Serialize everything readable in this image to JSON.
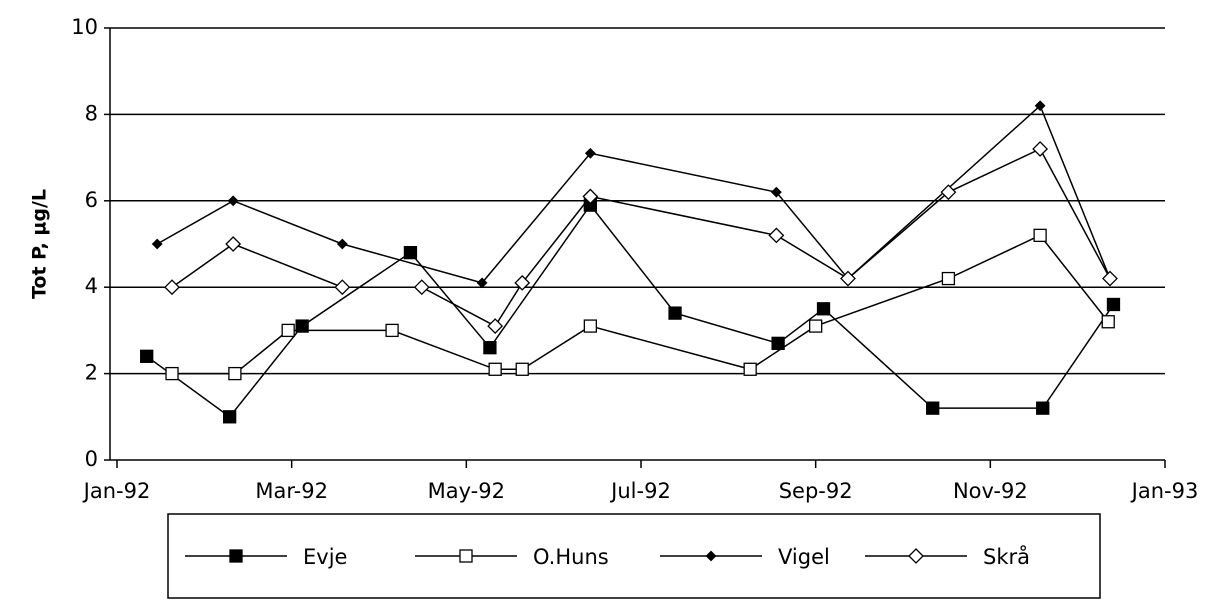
{
  "chart_data": {
    "type": "line",
    "ylabel": "Tot P, µg/L",
    "xlim": [
      0,
      12
    ],
    "xticks": [
      {
        "value": 0,
        "label": "Jan-92"
      },
      {
        "value": 2,
        "label": "Mar-92"
      },
      {
        "value": 4,
        "label": "May-92"
      },
      {
        "value": 6,
        "label": "Jul-92"
      },
      {
        "value": 8,
        "label": "Sep-92"
      },
      {
        "value": 10,
        "label": "Nov-92"
      },
      {
        "value": 12,
        "label": "Jan-93"
      }
    ],
    "ylim": [
      0,
      10
    ],
    "yticks": [
      0,
      2,
      4,
      6,
      8,
      10
    ],
    "grid": true,
    "legend": "bottom",
    "series": [
      {
        "name": "Evje",
        "color": "#000000",
        "marker": "square-filled",
        "x": [
          0.34,
          1.29,
          2.12,
          3.36,
          4.27,
          5.42,
          6.39,
          7.57,
          8.09,
          9.34,
          10.6,
          11.41
        ],
        "values": [
          2.4,
          1.0,
          3.1,
          4.8,
          2.6,
          5.9,
          3.4,
          2.7,
          3.5,
          1.2,
          1.2,
          3.6
        ]
      },
      {
        "name": "O.Huns",
        "color": "#000000",
        "marker": "square-open",
        "x": [
          0.63,
          1.35,
          1.96,
          3.15,
          4.33,
          4.64,
          5.42,
          7.25,
          8.0,
          9.52,
          10.57,
          11.35
        ],
        "values": [
          2.0,
          2.0,
          3.0,
          3.0,
          2.1,
          2.1,
          3.1,
          2.1,
          3.1,
          4.2,
          5.2,
          3.2
        ]
      },
      {
        "name": "Vigel",
        "color": "#000000",
        "marker": "diamond-filled",
        "x": [
          0.46,
          1.33,
          2.58,
          4.18,
          5.42,
          7.55,
          8.37,
          10.57,
          11.37
        ],
        "values": [
          5.0,
          6.0,
          5.0,
          4.1,
          7.1,
          6.2,
          4.2,
          8.2,
          4.2
        ]
      },
      {
        "name": "Skrå",
        "color": "#000000",
        "marker": "diamond-open",
        "x": [
          0.63,
          1.33,
          2.58,
          3.49,
          4.33,
          4.64,
          5.42,
          7.55,
          8.37,
          9.52,
          10.57,
          11.37
        ],
        "values": [
          4.0,
          5.0,
          4.0,
          4.0,
          3.1,
          4.1,
          6.1,
          5.2,
          4.2,
          6.2,
          7.2,
          4.2
        ]
      }
    ]
  }
}
